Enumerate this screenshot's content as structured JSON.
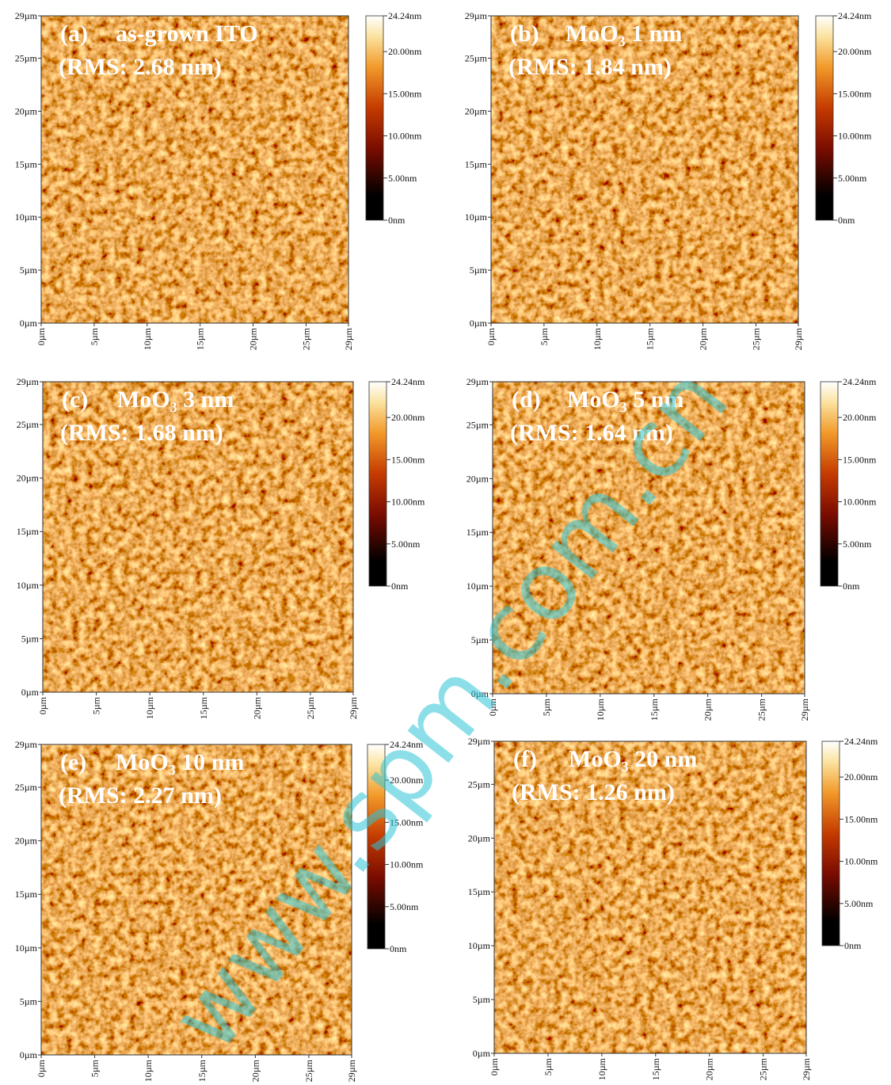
{
  "panels": [
    {
      "label": "(a)",
      "title": "as-grown ITO",
      "rms": "(RMS: 2.68 nm)"
    },
    {
      "label": "(b)",
      "title": "MoO₃ 1 nm",
      "rms": "(RMS: 1.84 nm)"
    },
    {
      "label": "(c)",
      "title": "MoO₃ 3 nm",
      "rms": "(RMS: 1.68 nm)"
    },
    {
      "label": "(d)",
      "title": "MoO₃ 5 nm",
      "rms": "(RMS: 1.64 nm)"
    },
    {
      "label": "(e)",
      "title": "MoO₃ 10 nm",
      "rms": "(RMS: 2.27 nm)"
    },
    {
      "label": "(f)",
      "title": "MoO₃ 20 nm",
      "rms": "(RMS: 1.26 nm)"
    }
  ],
  "axis_ticks": [
    {
      "value": 0,
      "label": "0µm"
    },
    {
      "value": 5,
      "label": "5µm"
    },
    {
      "value": 10,
      "label": "10µm"
    },
    {
      "value": 15,
      "label": "15µm"
    },
    {
      "value": 20,
      "label": "20µm"
    },
    {
      "value": 25,
      "label": "25µm"
    },
    {
      "value": 29,
      "label": "29µm"
    }
  ],
  "colorbar_ticks": [
    {
      "value": 24.24,
      "label": "24.24nm"
    },
    {
      "value": 20,
      "label": "20.00nm"
    },
    {
      "value": 15,
      "label": "15.00nm"
    },
    {
      "value": 10,
      "label": "10.00nm"
    },
    {
      "value": 5,
      "label": "5.00nm"
    },
    {
      "value": 0,
      "label": "0nm"
    }
  ],
  "watermark": "www.spm.com.cn"
}
